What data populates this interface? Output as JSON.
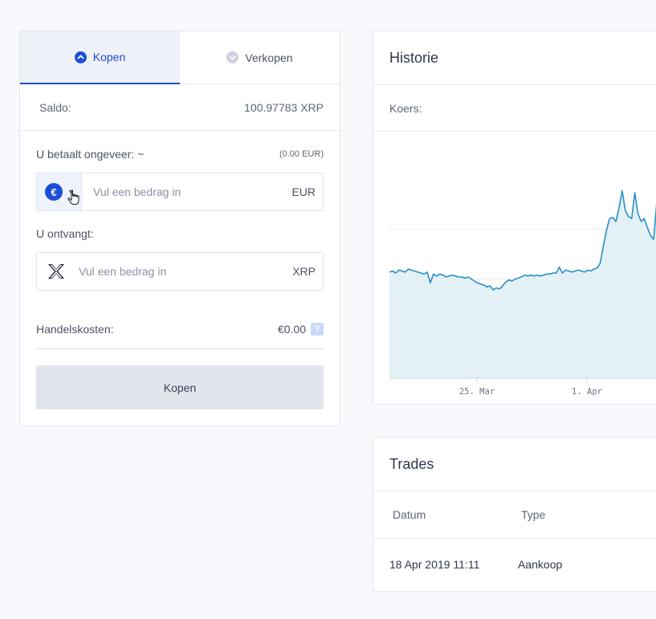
{
  "trade_panel": {
    "tabs": [
      {
        "label": "Kopen",
        "active": true
      },
      {
        "label": "Verkopen",
        "active": false
      }
    ],
    "saldo": {
      "label": "Saldo:",
      "value": "100.97783 XRP"
    },
    "pay": {
      "label": "U betaalt ongeveer: ~",
      "estimate": "(0.00 EUR)",
      "currency_icon": "euro-icon",
      "placeholder": "Vul een bedrag in",
      "unit": "EUR"
    },
    "receive": {
      "label": "U ontvangt:",
      "currency_icon": "xrp-icon",
      "placeholder": "Vul een bedrag in",
      "unit": "XRP"
    },
    "fees": {
      "label": "Handelskosten:",
      "value": "€0.00",
      "help": "?"
    },
    "submit_label": "Kopen"
  },
  "history": {
    "title": "Historie",
    "rate_label": "Koers:"
  },
  "chart_data": {
    "type": "area",
    "title": "",
    "xlabel": "",
    "ylabel": "",
    "x_ticks": [
      "25. Mar",
      "1. Apr"
    ],
    "grid": "horizontal",
    "legend": "none",
    "series": [
      {
        "values": [
          0.307,
          0.308,
          0.306,
          0.309,
          0.308,
          0.307,
          0.31,
          0.309,
          0.308,
          0.307,
          0.306,
          0.305,
          0.307,
          0.296,
          0.305,
          0.303,
          0.305,
          0.304,
          0.302,
          0.303,
          0.304,
          0.303,
          0.302,
          0.302,
          0.301,
          0.302,
          0.3,
          0.298,
          0.296,
          0.295,
          0.294,
          0.292,
          0.293,
          0.289,
          0.291,
          0.29,
          0.293,
          0.297,
          0.299,
          0.298,
          0.3,
          0.301,
          0.302,
          0.304,
          0.303,
          0.304,
          0.303,
          0.304,
          0.303,
          0.304,
          0.305,
          0.305,
          0.306,
          0.306,
          0.312,
          0.306,
          0.309,
          0.308,
          0.307,
          0.308,
          0.309,
          0.308,
          0.307,
          0.309,
          0.308,
          0.31,
          0.311,
          0.316,
          0.333,
          0.349,
          0.361,
          0.362,
          0.358,
          0.372,
          0.389,
          0.369,
          0.363,
          0.361,
          0.387,
          0.366,
          0.358,
          0.361,
          0.352,
          0.344,
          0.34,
          0.378
        ],
        "color": "#2a8fc7"
      }
    ],
    "colors": {
      "line": "#2a8fc7",
      "fill": "#e3f1f7",
      "grid": "#e6e8ee"
    }
  },
  "trades": {
    "title": "Trades",
    "columns": [
      "Datum",
      "Type"
    ],
    "rows": [
      {
        "date": "18 Apr 2019 11:11",
        "type": "Aankoop"
      }
    ]
  },
  "colors": {
    "accent": "#1d4ed8",
    "page_bg": "#f8f9fd",
    "button_bg": "#e2e5ec",
    "help_badge": "#c9daf6"
  }
}
